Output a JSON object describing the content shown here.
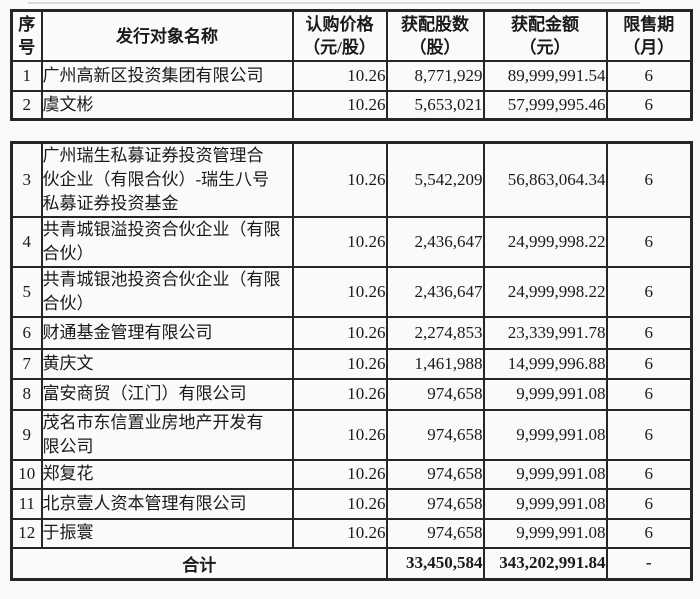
{
  "colors": {
    "page_background": "#fafaf8",
    "border": "#262626",
    "text": "#1a1a1a"
  },
  "table": {
    "headers": {
      "index": "序\n号",
      "name": "发行对象名称",
      "price": "认购价格\n（元/股）",
      "shares": "获配股数\n（股）",
      "amount": "获配金额\n（元）",
      "lockup": "限售期\n（月）"
    },
    "rows": [
      {
        "no": "1",
        "name": "广州高新区投资集团有限公司",
        "price": "10.26",
        "shares": "8,771,929",
        "amount": "89,999,991.54",
        "lockup": "6"
      },
      {
        "no": "2",
        "name": "虞文彬",
        "price": "10.26",
        "shares": "5,653,021",
        "amount": "57,999,995.46",
        "lockup": "6"
      },
      {
        "no": "3",
        "name": "广州瑞生私募证券投资管理合\n伙企业（有限合伙）-瑞生八号\n私募证券投资基金",
        "price": "10.26",
        "shares": "5,542,209",
        "amount": "56,863,064.34",
        "lockup": "6"
      },
      {
        "no": "4",
        "name": "共青城银溢投资合伙企业（有限\n合伙）",
        "price": "10.26",
        "shares": "2,436,647",
        "amount": "24,999,998.22",
        "lockup": "6"
      },
      {
        "no": "5",
        "name": "共青城银池投资合伙企业（有限\n合伙）",
        "price": "10.26",
        "shares": "2,436,647",
        "amount": "24,999,998.22",
        "lockup": "6"
      },
      {
        "no": "6",
        "name": "财通基金管理有限公司",
        "price": "10.26",
        "shares": "2,274,853",
        "amount": "23,339,991.78",
        "lockup": "6"
      },
      {
        "no": "7",
        "name": "黄庆文",
        "price": "10.26",
        "shares": "1,461,988",
        "amount": "14,999,996.88",
        "lockup": "6"
      },
      {
        "no": "8",
        "name": "富安商贸（江门）有限公司",
        "price": "10.26",
        "shares": "974,658",
        "amount": "9,999,991.08",
        "lockup": "6"
      },
      {
        "no": "9",
        "name": "茂名市东信置业房地产开发有\n限公司",
        "price": "10.26",
        "shares": "974,658",
        "amount": "9,999,991.08",
        "lockup": "6"
      },
      {
        "no": "10",
        "name": "郑复花",
        "price": "10.26",
        "shares": "974,658",
        "amount": "9,999,991.08",
        "lockup": "6"
      },
      {
        "no": "11",
        "name": "北京壹人资本管理有限公司",
        "price": "10.26",
        "shares": "974,658",
        "amount": "9,999,991.08",
        "lockup": "6"
      },
      {
        "no": "12",
        "name": "于振寰",
        "price": "10.26",
        "shares": "974,658",
        "amount": "9,999,991.08",
        "lockup": "6"
      }
    ],
    "total": {
      "label": "合计",
      "shares": "33,450,584",
      "amount": "343,202,991.84",
      "lockup": "-"
    }
  }
}
